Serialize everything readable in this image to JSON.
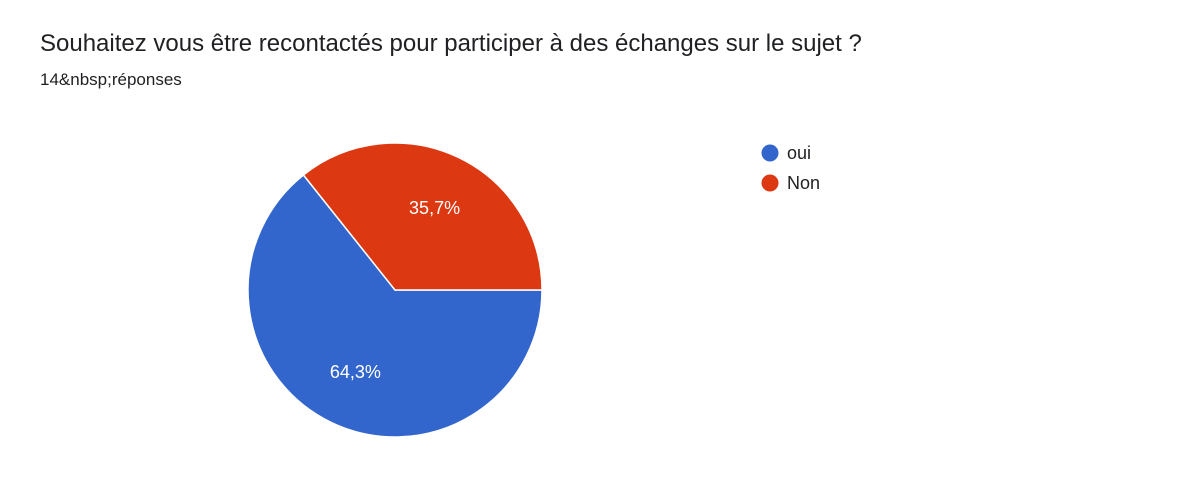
{
  "question": "Souhaitez vous être recontactés pour participer à des échanges sur le sujet ?",
  "responses_text": "14&nbsp;réponses",
  "chart_data": {
    "type": "pie",
    "categories": [
      "oui",
      "Non"
    ],
    "values": [
      64.3,
      35.7
    ],
    "labels": [
      "64,3%",
      "35,7%"
    ],
    "colors": [
      "#3366cc",
      "#dc3912"
    ],
    "legend_position": "right"
  }
}
